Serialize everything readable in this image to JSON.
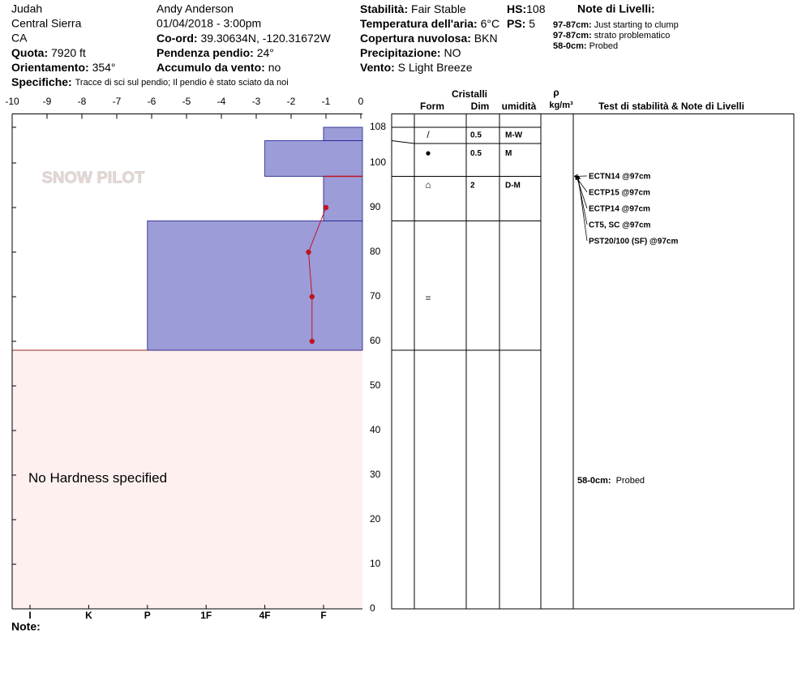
{
  "header": {
    "location": "Judah",
    "range": "Central Sierra",
    "state": "CA",
    "elevation": {
      "label": "Quota:",
      "value": "7920 ft"
    },
    "aspect": {
      "label": "Orientamento:",
      "value": "354°"
    },
    "specifics": {
      "label": "Specifiche:",
      "value": "Tracce di sci sul pendio;  Il pendio è stato sciato da noi"
    },
    "observer": "Andy Anderson",
    "datetime": "01/04/2018 - 3:00pm",
    "coords": {
      "label": "Co-ord:",
      "value": "39.30634N, -120.31672W"
    },
    "slope": {
      "label": "Pendenza pendio:",
      "value": "24°"
    },
    "wind_loading": {
      "label": "Accumulo da vento:",
      "value": "no"
    },
    "stability": {
      "label": "Stabilità:",
      "value": "Fair Stable"
    },
    "air_temp": {
      "label": "Temperatura dell'aria:",
      "value": "6°C"
    },
    "sky": {
      "label": "Copertura nuvolosa:",
      "value": "BKN"
    },
    "precip": {
      "label": "Precipitazione:",
      "value": "NO"
    },
    "wind": {
      "label": "Vento:",
      "value": "S Light Breeze"
    },
    "hs": {
      "label": "HS:",
      "value": "108"
    },
    "ps": {
      "label": "PS:",
      "value": "5"
    },
    "notes_title": "Note di Livelli:",
    "notes": [
      {
        "range": "97-87cm:",
        "text": "Just starting to clump"
      },
      {
        "range": "97-87cm:",
        "text": "strato problematico"
      },
      {
        "range": "58-0cm:",
        "text": "Probed"
      }
    ]
  },
  "logo": "SNOW PILOT",
  "footer_note": "Note:",
  "chart_data": {
    "type": "snow-profile",
    "xlim": [
      -10,
      0
    ],
    "xticks": [
      -10,
      -9,
      -8,
      -7,
      -6,
      -5,
      -4,
      -3,
      -2,
      -1,
      0
    ],
    "ylim": [
      0,
      111
    ],
    "yticks": [
      0,
      10,
      20,
      30,
      40,
      50,
      60,
      70,
      80,
      90,
      100,
      108
    ],
    "hardness_scale": [
      "I",
      "K",
      "P",
      "1F",
      "4F",
      "F"
    ],
    "layers": [
      {
        "top": 108,
        "bottom": 105,
        "hardness": "F",
        "form": "/",
        "size": 0.5,
        "wetness": "M-W"
      },
      {
        "top": 105,
        "bottom": 97,
        "hardness": "4F",
        "form": "●",
        "size": 0.5,
        "wetness": "M"
      },
      {
        "top": 97,
        "bottom": 87,
        "hardness": "F",
        "form": "⌂",
        "size": 2,
        "wetness": "D-M"
      },
      {
        "top": 87,
        "bottom": 58,
        "hardness": "P",
        "form": "="
      }
    ],
    "probed_layer": {
      "top": 58,
      "bottom": 0,
      "text": "No Hardness specified"
    },
    "critical_depth": 97,
    "temperature_profile": {
      "depth": [
        90,
        80,
        70,
        60
      ],
      "temperature": [
        -1.0,
        -1.5,
        -1.4,
        -1.4
      ]
    },
    "column_headers": {
      "crystals": "Cristalli",
      "form": "Form",
      "size": "Dim",
      "wetness": "umidità",
      "rho": "ρ",
      "density_unit": "kg/m³",
      "tests": "Test di stabilità & Note di Livelli"
    },
    "tests": [
      "ECTN14 @97cm",
      "ECTP15 @97cm",
      "ECTP14 @97cm",
      "CT5, SC @97cm",
      "PST20/100 (SF) @97cm"
    ],
    "layer_notes": [
      {
        "range": "58-0cm:",
        "text": "Probed",
        "depth": 30
      }
    ]
  }
}
